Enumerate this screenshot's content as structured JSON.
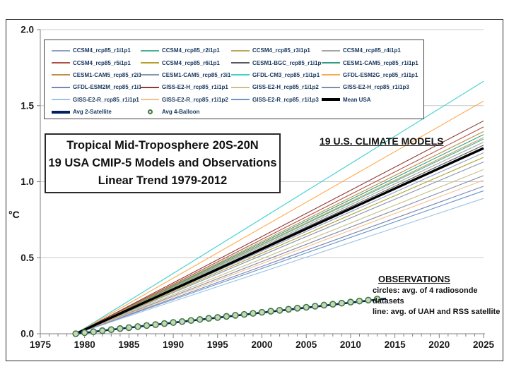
{
  "title_box": {
    "line1": "Tropical Mid-Troposphere 20S-20N",
    "line2": "19 USA CMIP-5 Models and Observations",
    "line3": "Linear Trend 1979-2012"
  },
  "annotations": {
    "models_label": "19 U.S. CLIMATE MODELS",
    "observations_title": "OBSERVATIONS",
    "observations_line1": "circles: avg. of 4 radiosonde datasets",
    "observations_line2": "line: avg. of UAH and RSS satellite"
  },
  "y_axis_label": "°C",
  "chart_data": {
    "type": "line",
    "title": "Tropical Mid-Troposphere 20S-20N, 19 USA CMIP-5 Models and Observations, Linear Trend 1979-2012",
    "xlabel": "",
    "ylabel": "°C",
    "x_range": [
      1975,
      2025
    ],
    "y_range": [
      0.0,
      2.0
    ],
    "x_ticks": [
      1975,
      1980,
      1985,
      1990,
      1995,
      2000,
      2005,
      2010,
      2015,
      2020,
      2025
    ],
    "x_minor_tick_step": 1,
    "y_ticks": [
      0.0,
      0.5,
      1.0,
      1.5,
      2.0
    ],
    "grid": "horizontal-gray",
    "legend_position": "top-inside-box",
    "trend_start": {
      "year": 1979,
      "value": 0.0
    },
    "end_year": 2025,
    "models": [
      {
        "name": "CCSM4_rcp85_r1i1p1",
        "color": "#8EA0C8",
        "value_2025": 1.19
      },
      {
        "name": "CCSM4_rcp85_r2i1p1",
        "color": "#4CAE93",
        "value_2025": 1.28
      },
      {
        "name": "CCSM4_rcp85_r3i1p1",
        "color": "#C0A35E",
        "value_2025": 1.29
      },
      {
        "name": "CCSM4_rcp85_r4i1p1",
        "color": "#A6A6A6",
        "value_2025": 1.26
      },
      {
        "name": "CCSM4_rcp85_r5i1p1",
        "color": "#B0504A",
        "value_2025": 1.36
      },
      {
        "name": "CCSM4_rcp85_r6i1p1",
        "color": "#B3A02C",
        "value_2025": 1.16
      },
      {
        "name": "CESM1-BGC_rcp85_r1i1p1",
        "color": "#595959",
        "value_2025": 1.24
      },
      {
        "name": "CESM1-CAM5_rcp85_r1i1p1",
        "color": "#2E9C85",
        "value_2025": 1.31
      },
      {
        "name": "CESM1-CAM5_rcp85_r2i1p1",
        "color": "#BE8F45",
        "value_2025": 1.33
      },
      {
        "name": "CESM1-CAM5_rcp85_r3i1p1",
        "color": "#8496B0",
        "value_2025": 1.13
      },
      {
        "name": "GFDL-CM3_rcp85_r1i1p1",
        "color": "#40D0D0",
        "value_2025": 1.66
      },
      {
        "name": "GFDL-ESM2G_rcp85_r1i1p1",
        "color": "#FFA94E",
        "value_2025": 1.53
      },
      {
        "name": "GFDL-ESM2M_rcp85_r1i1p1",
        "color": "#7686B8",
        "value_2025": 0.97
      },
      {
        "name": "GISS-E2-H_rcp85_r1i1p1",
        "color": "#8E3B36",
        "value_2025": 1.4
      },
      {
        "name": "GISS-E2-H_rcp85_r1i1p2",
        "color": "#C8C08C",
        "value_2025": 1.08
      },
      {
        "name": "GISS-E2-H_rcp85_r1i1p3",
        "color": "#7F8CAA",
        "value_2025": 1.04
      },
      {
        "name": "GISS-E2-R_rcp85_r1i1p1",
        "color": "#9DC3E6",
        "value_2025": 0.89
      },
      {
        "name": "GISS-E2-R_rcp85_r1i1p2",
        "color": "#F7C08A",
        "value_2025": 1.01
      },
      {
        "name": "GISS-E2-R_rcp85_r1i1p3",
        "color": "#6B96C8",
        "value_2025": 0.94
      }
    ],
    "mean_usa": {
      "name": "Mean USA",
      "color": "#000000",
      "value_2025": 1.22
    },
    "satellite": {
      "name": "Avg 2-Satellite",
      "color": "#002060",
      "end_year": 2014,
      "end_value": 0.231
    },
    "balloon": {
      "name": "Avg 4-Balloon",
      "marker_stroke": "#3F7A3F",
      "marker_fill": "#C9D6BC",
      "years": [
        1979,
        1980,
        1981,
        1982,
        1983,
        1984,
        1985,
        1986,
        1987,
        1988,
        1989,
        1990,
        1991,
        1992,
        1993,
        1994,
        1995,
        1996,
        1997,
        1998,
        1999,
        2000,
        2001,
        2002,
        2003,
        2004,
        2005,
        2006,
        2007,
        2008,
        2009,
        2010,
        2011,
        2012,
        2013
      ],
      "values": [
        0.0,
        0.007,
        0.013,
        0.02,
        0.027,
        0.034,
        0.04,
        0.047,
        0.054,
        0.06,
        0.067,
        0.074,
        0.08,
        0.087,
        0.094,
        0.101,
        0.107,
        0.114,
        0.121,
        0.127,
        0.134,
        0.141,
        0.148,
        0.154,
        0.161,
        0.168,
        0.174,
        0.181,
        0.188,
        0.194,
        0.201,
        0.208,
        0.215,
        0.221,
        0.228
      ]
    }
  }
}
